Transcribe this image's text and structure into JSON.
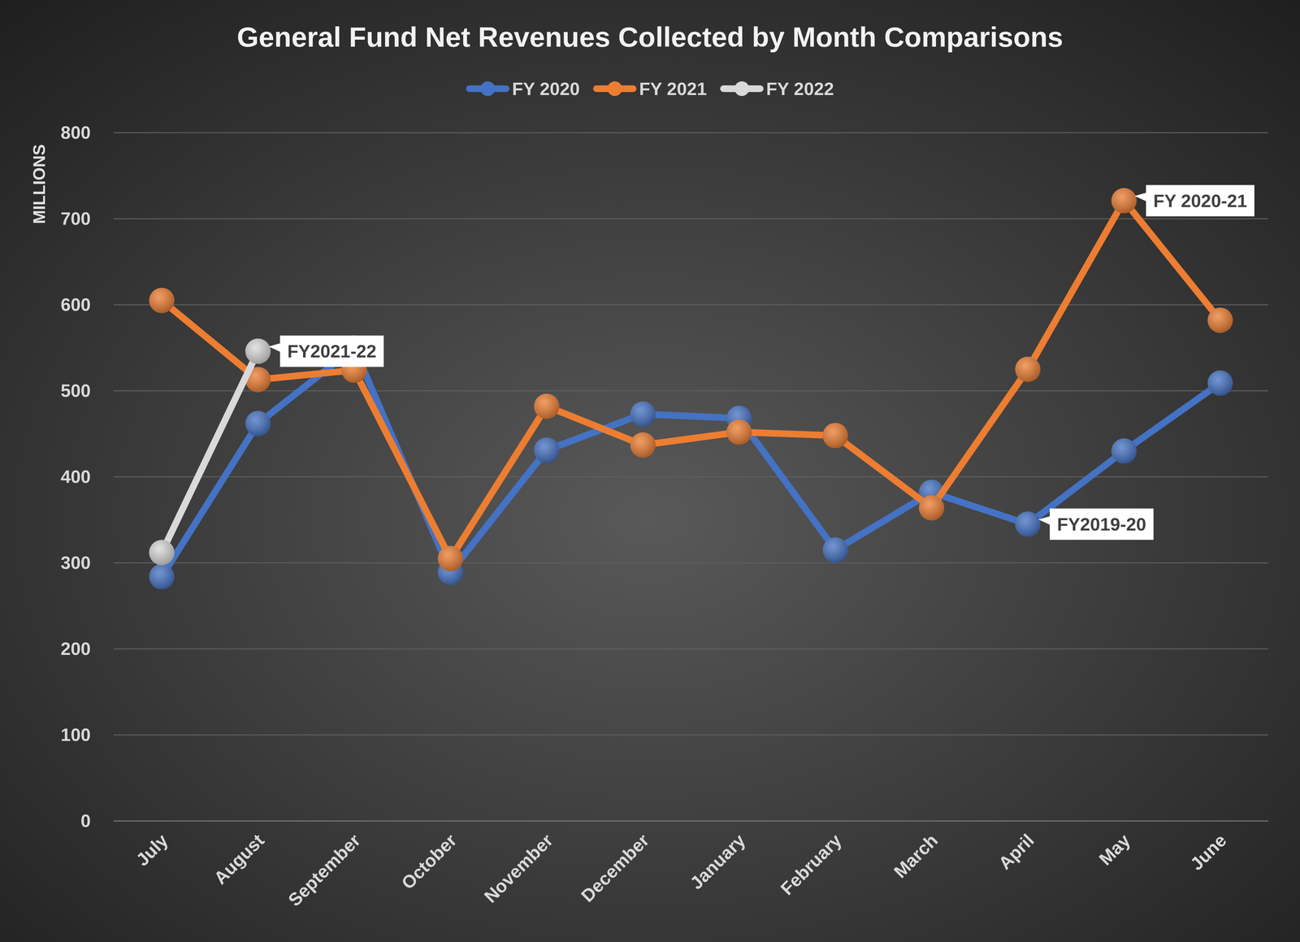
{
  "chart_data": {
    "type": "line",
    "title": "General Fund Net Revenues Collected by Month Comparisons",
    "y_label": "MILLIONS",
    "categories": [
      "July",
      "August",
      "September",
      "October",
      "November",
      "December",
      "January",
      "February",
      "March",
      "April",
      "May",
      "June"
    ],
    "series": [
      {
        "name": "FY 2020",
        "color": "#4472c4",
        "marker": "circle",
        "line_style": "solid",
        "values": [
          284,
          462,
          550,
          289,
          431,
          473,
          468,
          315,
          382,
          345,
          430,
          509
        ]
      },
      {
        "name": "FY 2021",
        "color": "#ed7d31",
        "marker": "circle",
        "line_style": "solid",
        "values": [
          605,
          513,
          524,
          305,
          482,
          437,
          452,
          448,
          364,
          525,
          721,
          582
        ]
      },
      {
        "name": "FY 2022",
        "color": "#d9d9d9",
        "marker": "circle",
        "line_style": "solid",
        "values": [
          312,
          546,
          null,
          null,
          null,
          null,
          null,
          null,
          null,
          null,
          null,
          null
        ]
      }
    ],
    "annotations": [
      {
        "text": "FY2021-22",
        "series": "FY 2022",
        "category": "August"
      },
      {
        "text": "FY 2020-21",
        "series": "FY 2021",
        "category": "May"
      },
      {
        "text": "FY2019-20",
        "series": "FY 2020",
        "category": "April"
      }
    ],
    "ylim": [
      0,
      800
    ],
    "yticks": [
      0,
      100,
      200,
      300,
      400,
      500,
      600,
      700,
      800
    ],
    "grid": true,
    "legend": "top"
  }
}
